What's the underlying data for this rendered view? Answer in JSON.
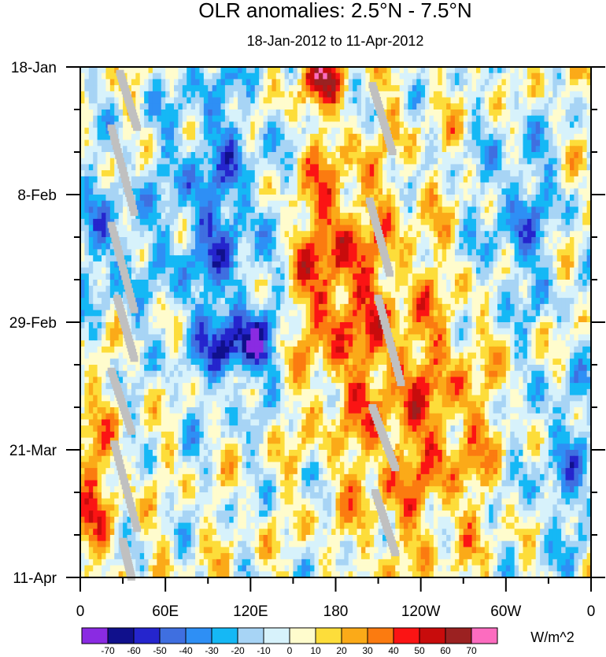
{
  "chart_data": {
    "type": "heatmap",
    "title": "OLR anomalies: 2.5°N - 7.5°N",
    "subtitle": "18-Jan-2012 to 11-Apr-2012",
    "x_axis": {
      "tick_labels": [
        "0",
        "60E",
        "120E",
        "180",
        "120W",
        "60W",
        "0"
      ],
      "tick_values_deg_east": [
        0,
        60,
        120,
        180,
        240,
        300,
        360
      ],
      "range_deg_east": [
        0,
        360
      ]
    },
    "y_axis": {
      "tick_labels": [
        "18-Jan",
        "8-Feb",
        "29-Feb",
        "21-Mar",
        "11-Apr"
      ],
      "tick_values_day": [
        0,
        21,
        42,
        63,
        84
      ],
      "range_day": [
        0,
        84
      ],
      "direction": "time increases downward"
    },
    "colorbar": {
      "units": "W/m^2",
      "levels": [
        -70,
        -60,
        -50,
        -40,
        -30,
        -20,
        -10,
        0,
        10,
        20,
        30,
        40,
        50,
        60,
        70
      ],
      "level_labels": [
        "-70",
        "-60",
        "-50",
        "-40",
        "-30",
        "-20",
        "-10",
        "0",
        "10",
        "20",
        "30",
        "40",
        "50",
        "60",
        "70"
      ],
      "colors": [
        "#8a2be2",
        "#10108c",
        "#2525cd",
        "#3f6fe0",
        "#2e8ff5",
        "#15b8f5",
        "#a7d4f5",
        "#d7f2fb",
        "#fffccd",
        "#fddd3a",
        "#fbaa18",
        "#fb7b10",
        "#fb1414",
        "#c80c0c",
        "#9b2121",
        "#fc6cbf"
      ]
    },
    "missing_color": "#c0c0c0",
    "features": [
      {
        "desc": "strong positive anomaly (+40 to +60) near 170E-180",
        "lon": 170,
        "days": [
          0,
          4
        ]
      },
      {
        "desc": "positive band (+20 to +50) 150E-200E",
        "lon_range": [
          150,
          200
        ],
        "days": [
          20,
          45
        ]
      },
      {
        "desc": "strong negative anomaly (-50 to -70) near 100E-140E",
        "lon_range": [
          100,
          140
        ],
        "days": [
          42,
          50
        ]
      },
      {
        "desc": "negative anomalies (-30 to -60) 60E-140E",
        "lon_range": [
          60,
          140
        ],
        "days": [
          5,
          70
        ]
      },
      {
        "desc": "positive anomalies (+20 to +50) 0-40E",
        "lon_range": [
          0,
          40
        ],
        "days": [
          55,
          84
        ]
      }
    ]
  }
}
